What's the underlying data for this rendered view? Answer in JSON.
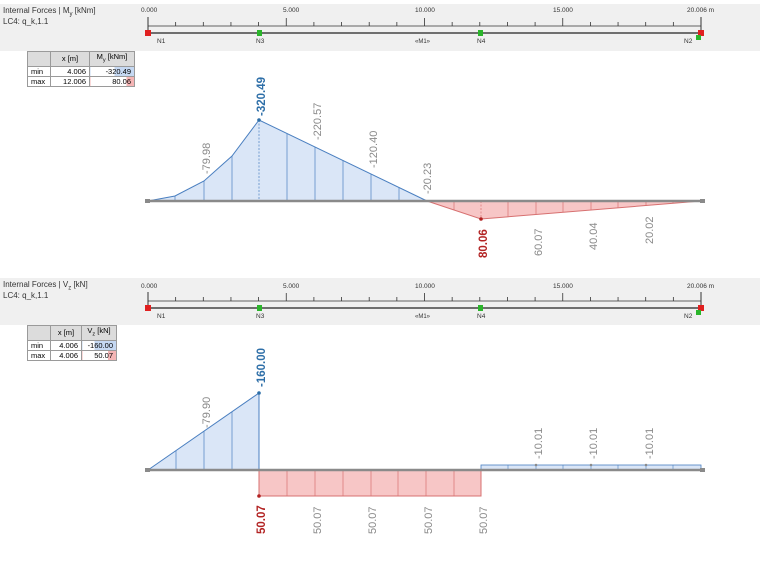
{
  "panels": [
    {
      "title": "Internal Forces | M",
      "title_sub": "y",
      "title_unit": " [kNm]",
      "load_case": "LC4: q_k,1.1",
      "ruler": {
        "ticks": [
          "0.000",
          "5.000",
          "10.000",
          "15.000",
          "20.006 m"
        ]
      },
      "nodes": {
        "n1": "N1",
        "n3": "N3",
        "m1": "«M1»",
        "n4": "N4",
        "n2": "N2"
      },
      "table": {
        "col_x": "x [m]",
        "col_v_main": "M",
        "col_v_sub": "y",
        "col_v_unit": " [kNm]",
        "rows": [
          {
            "label": "min",
            "x": "4.006",
            "v": "-320.49"
          },
          {
            "label": "max",
            "x": "12.006",
            "v": "80.06"
          }
        ]
      },
      "labels": [
        "-79.98",
        "-320.49",
        "-220.57",
        "-120.40",
        "-20.23",
        "80.06",
        "60.07",
        "40.04",
        "20.02"
      ]
    },
    {
      "title": "Internal Forces | V",
      "title_sub": "z",
      "title_unit": " [kN]",
      "load_case": "LC4: q_k,1.1",
      "ruler": {
        "ticks": [
          "0.000",
          "5.000",
          "10.000",
          "15.000",
          "20.006 m"
        ]
      },
      "nodes": {
        "n1": "N1",
        "n3": "N3",
        "m1": "«M1»",
        "n4": "N4",
        "n2": "N2"
      },
      "table": {
        "col_x": "x [m]",
        "col_v_main": "V",
        "col_v_sub": "z",
        "col_v_unit": " [kN]",
        "rows": [
          {
            "label": "min",
            "x": "4.006",
            "v": "-160.00"
          },
          {
            "label": "max",
            "x": "4.006",
            "v": "50.07"
          }
        ]
      },
      "labels": [
        "-79.90",
        "-160.00",
        "-10.01",
        "-10.01",
        "-10.01",
        "50.07",
        "50.07",
        "50.07",
        "50.07",
        "50.07"
      ]
    }
  ],
  "colors": {
    "negative_fill": "#dae6f7",
    "negative_line": "#4a7fc0",
    "positive_fill": "#f7c6c6",
    "positive_line": "#d77070",
    "extreme_neg": "#2e6fa8",
    "extreme_pos": "#b22222",
    "label": "#8a8a8a"
  }
}
